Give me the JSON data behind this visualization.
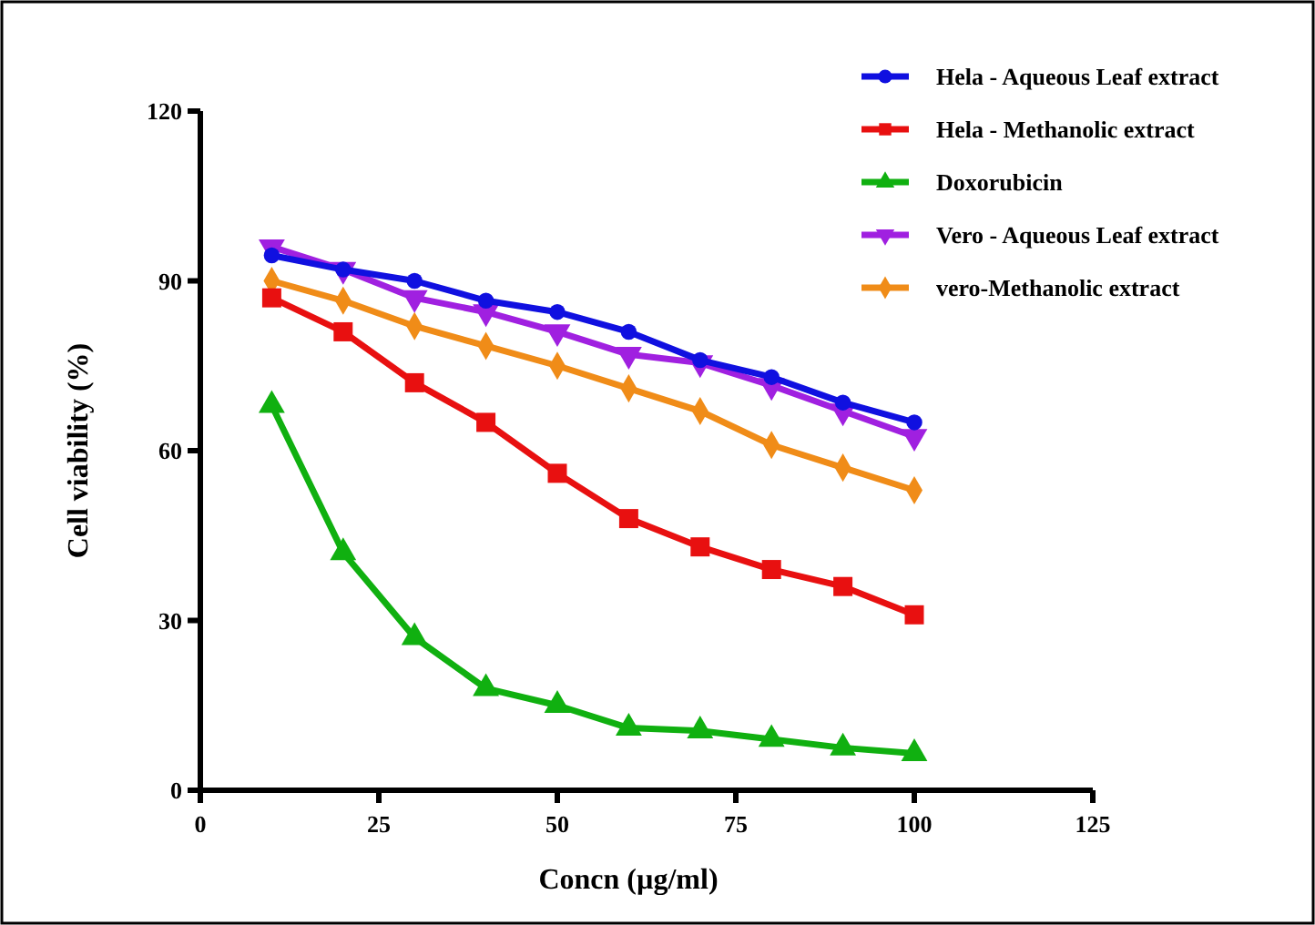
{
  "chart_data": {
    "type": "line",
    "xlabel": "Concn (µg/ml)",
    "ylabel": "Cell viability (%)",
    "x": [
      10,
      20,
      30,
      40,
      50,
      60,
      70,
      80,
      90,
      100
    ],
    "xlim": [
      0,
      125
    ],
    "xticks": [
      0,
      25,
      50,
      75,
      100,
      125
    ],
    "ylim": [
      0,
      120
    ],
    "yticks": [
      0,
      30,
      60,
      90,
      120
    ],
    "grid": false,
    "legend": "top right",
    "line_style": "solid",
    "series": [
      {
        "name": "Hela - Aqueous Leaf extract",
        "color": "#1010e0",
        "marker": "circle",
        "values": [
          94.5,
          92,
          90,
          86.5,
          84.5,
          81,
          76,
          73,
          68.5,
          65
        ]
      },
      {
        "name": "Hela - Methanolic extract",
        "color": "#e81010",
        "marker": "square",
        "values": [
          87,
          81,
          72,
          65,
          56,
          48,
          43,
          39,
          36,
          31
        ]
      },
      {
        "name": "Doxorubicin",
        "color": "#10b010",
        "marker": "triangle",
        "values": [
          68,
          42,
          27,
          18,
          15,
          11,
          10.5,
          9,
          7.5,
          6.5
        ]
      },
      {
        "name": "Vero - Aqueous Leaf extract",
        "color": "#a020e0",
        "marker": "triangle-down",
        "values": [
          96,
          92,
          87,
          84.5,
          81,
          77,
          75.5,
          71.5,
          67,
          62.5
        ]
      },
      {
        "name": "vero-Methanolic extract",
        "color": "#f08c18",
        "marker": "diamond",
        "values": [
          90,
          86.5,
          82,
          78.5,
          75,
          71,
          67,
          61,
          57,
          53
        ]
      }
    ]
  }
}
